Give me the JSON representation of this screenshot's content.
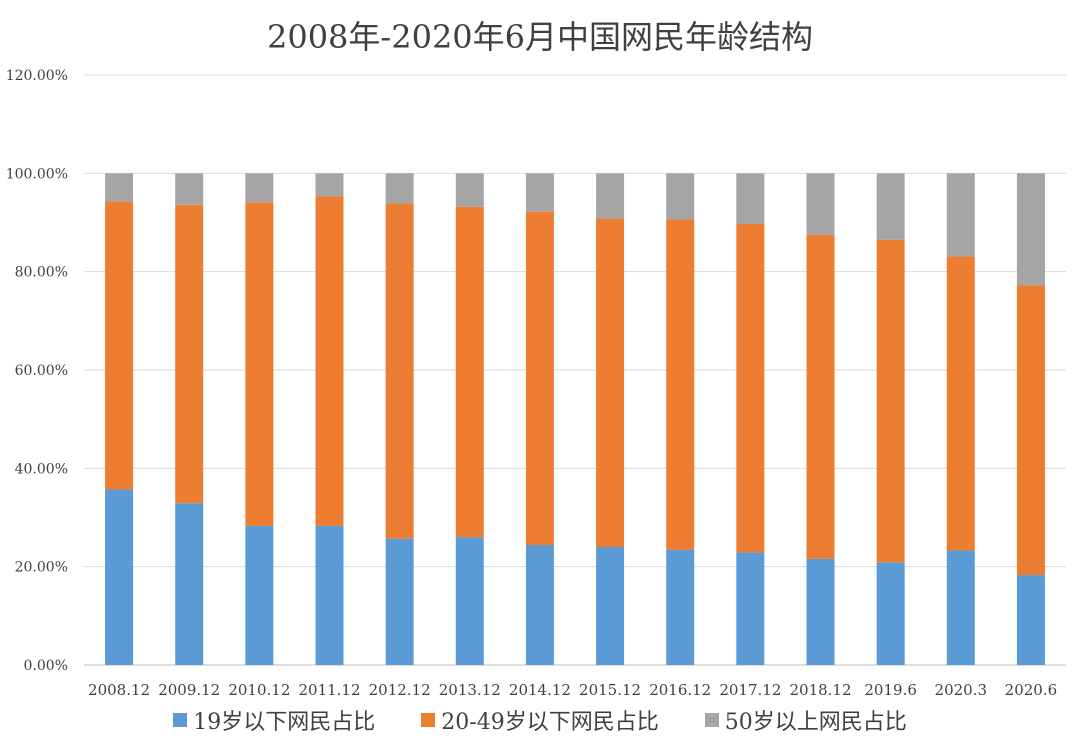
{
  "chart_data": {
    "type": "bar",
    "stacked": true,
    "title": "2008年-2020年6月中国网民年龄结构",
    "xlabel": "",
    "ylabel": "",
    "ylim": [
      0,
      120
    ],
    "yticks": [
      "0.00%",
      "20.00%",
      "40.00%",
      "60.00%",
      "80.00%",
      "100.00%",
      "120.00%"
    ],
    "ytick_values": [
      0,
      20,
      40,
      60,
      80,
      100,
      120
    ],
    "grid": true,
    "legend_position": "bottom",
    "categories": [
      "2008.12",
      "2009.12",
      "2010.12",
      "2011.12",
      "2012.12",
      "2013.12",
      "2014.12",
      "2015.12",
      "2016.12",
      "2017.12",
      "2018.12",
      "2019.6",
      "2020.3",
      "2020.6"
    ],
    "series": [
      {
        "name": "19岁以下网民占比",
        "color": "#5b9bd5",
        "values": [
          35.7,
          32.9,
          28.3,
          28.3,
          25.7,
          26.0,
          24.4,
          24.0,
          23.4,
          22.9,
          21.6,
          20.9,
          23.3,
          18.3
        ]
      },
      {
        "name": "20-49岁以下网民占比",
        "color": "#ed7d31",
        "values": [
          58.6,
          60.7,
          65.8,
          67.0,
          68.2,
          67.2,
          67.8,
          66.8,
          67.2,
          66.8,
          65.9,
          65.6,
          59.8,
          58.9
        ]
      },
      {
        "name": "50岁以上网民占比",
        "color": "#a5a5a5",
        "values": [
          5.7,
          6.4,
          5.9,
          4.7,
          6.1,
          6.8,
          7.8,
          9.2,
          9.4,
          10.3,
          12.5,
          13.5,
          16.9,
          22.8
        ]
      }
    ]
  }
}
